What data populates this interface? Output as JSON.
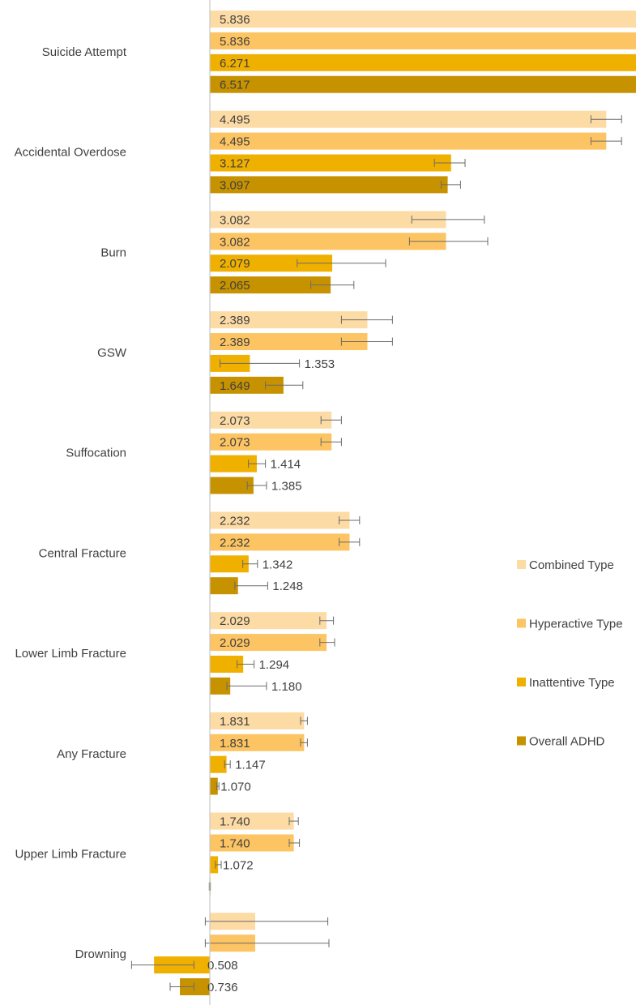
{
  "chart_data": {
    "type": "bar",
    "orientation": "horizontal",
    "categories": [
      "Suicide Attempt",
      "Accidental Overdose",
      "Burn",
      "GSW",
      "Suffocation",
      "Central Fracture",
      "Lower Limb Fracture",
      "Any Fracture",
      "Upper Limb Fracture",
      "Drowning"
    ],
    "series": [
      {
        "name": "Combined Type",
        "color": "#FDDBA4",
        "values": [
          5.836,
          4.495,
          3.082,
          2.389,
          2.073,
          2.232,
          2.029,
          1.831,
          1.74,
          1.4
        ],
        "error_low": [
          5.4,
          4.36,
          2.78,
          2.16,
          1.98,
          2.14,
          1.97,
          1.8,
          1.7,
          0.96
        ],
        "error_high": [
          6.28,
          4.63,
          3.42,
          2.61,
          2.16,
          2.32,
          2.09,
          1.86,
          1.78,
          2.04
        ],
        "labels": [
          "5.836",
          "4.495",
          "3.082",
          "2.389",
          "2.073",
          "2.232",
          "2.029",
          "1.831",
          "1.740",
          ""
        ]
      },
      {
        "name": "Hyperactive Type",
        "color": "#FCC462",
        "values": [
          5.836,
          4.495,
          3.082,
          2.389,
          2.073,
          2.232,
          2.029,
          1.831,
          1.74,
          1.4
        ],
        "error_low": [
          5.38,
          4.36,
          2.76,
          2.16,
          1.98,
          2.14,
          1.97,
          1.8,
          1.7,
          0.96
        ],
        "error_high": [
          6.31,
          4.63,
          3.45,
          2.61,
          2.16,
          2.32,
          2.1,
          1.86,
          1.79,
          2.05
        ],
        "labels": [
          "5.836",
          "4.495",
          "3.082",
          "2.389",
          "2.073",
          "2.232",
          "2.029",
          "1.831",
          "1.740",
          ""
        ]
      },
      {
        "name": "Inattentive Type",
        "color": "#F0B000",
        "values": [
          6.271,
          3.127,
          2.079,
          1.353,
          1.414,
          1.342,
          1.294,
          1.147,
          1.072,
          0.508
        ],
        "error_low": [
          5.86,
          2.98,
          1.77,
          1.09,
          1.34,
          1.29,
          1.24,
          1.13,
          1.05,
          0.31
        ],
        "error_high": [
          6.81,
          3.25,
          2.55,
          1.79,
          1.49,
          1.42,
          1.39,
          1.18,
          1.1,
          0.86
        ],
        "labels": [
          "6.271",
          "3.127",
          "2.079",
          "1.353",
          "1.414",
          "1.342",
          "1.294",
          "1.147",
          "1.072",
          "0.508"
        ]
      },
      {
        "name": "Overall ADHD",
        "color": "#C79200",
        "values": [
          6.517,
          3.097,
          2.065,
          1.649,
          1.385,
          1.248,
          1.18,
          1.07,
          1.0,
          0.736
        ],
        "error_low": [
          6.11,
          3.04,
          1.89,
          1.49,
          1.33,
          1.22,
          1.15,
          1.06,
          0.995,
          0.65
        ],
        "error_high": [
          7.01,
          3.21,
          2.27,
          1.82,
          1.5,
          1.51,
          1.5,
          1.08,
          1.005,
          0.86
        ],
        "labels": [
          "6.517",
          "3.097",
          "2.065",
          "1.649",
          "1.385",
          "1.248",
          "1.180",
          "1.070",
          "",
          "0.736"
        ]
      }
    ],
    "baseline": 1.0,
    "xlim": [
      0.0,
      7.5
    ],
    "title": "",
    "xlabel": "",
    "ylabel": "",
    "grid": false,
    "legend_position": "right"
  }
}
